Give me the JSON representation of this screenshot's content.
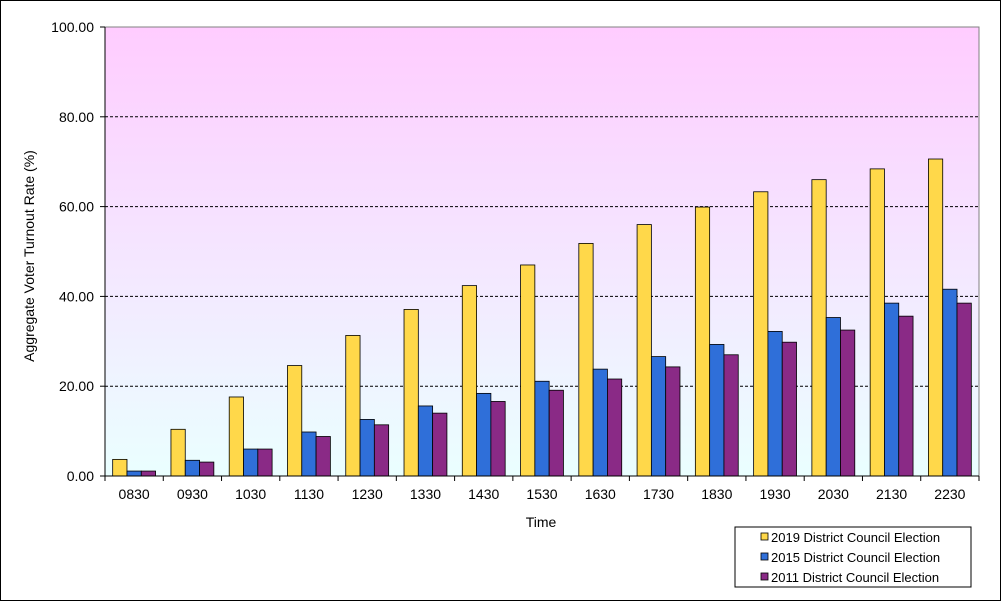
{
  "chart_data": {
    "type": "bar",
    "title": "",
    "xlabel": "Time",
    "ylabel": "Aggregate Voter Turnout Rate (%)",
    "ylim": [
      0,
      100
    ],
    "yticks": [
      "0.00",
      "20.00",
      "40.00",
      "60.00",
      "80.00",
      "100.00"
    ],
    "grid": true,
    "legend_position": "bottom-right",
    "background_gradient": [
      "#ffccff",
      "#eaffff"
    ],
    "categories": [
      "0830",
      "0930",
      "1030",
      "1130",
      "1230",
      "1330",
      "1430",
      "1530",
      "1630",
      "1730",
      "1830",
      "1930",
      "2030",
      "2130",
      "2230"
    ],
    "series": [
      {
        "name": "2019 District Council Election",
        "color": "#ffd84a",
        "values": [
          3.7,
          10.4,
          17.6,
          24.6,
          31.3,
          37.1,
          42.4,
          47.0,
          51.8,
          56.0,
          59.9,
          63.3,
          66.0,
          68.4,
          70.6
        ]
      },
      {
        "name": "2015 District Council Election",
        "color": "#2f6fd9",
        "values": [
          1.1,
          3.5,
          6.0,
          9.8,
          12.6,
          15.6,
          18.4,
          21.1,
          23.8,
          26.6,
          29.3,
          32.2,
          35.3,
          38.5,
          41.6
        ]
      },
      {
        "name": "2011 District Council Election",
        "color": "#8a2a86",
        "values": [
          1.1,
          3.1,
          6.0,
          8.8,
          11.4,
          14.0,
          16.6,
          19.1,
          21.6,
          24.3,
          27.0,
          29.8,
          32.5,
          35.6,
          38.5
        ]
      }
    ]
  }
}
